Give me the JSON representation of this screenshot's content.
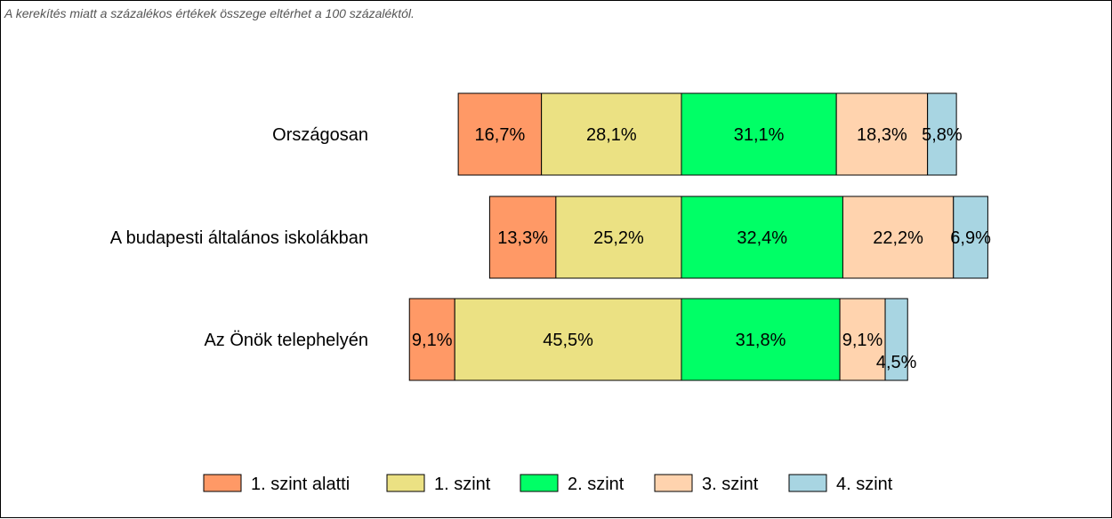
{
  "note": "A kerekítés miatt a  százalékos értékek összege eltérhet a 100 százaléktól.",
  "colors": {
    "1. szint alatti": "#FF9966",
    "1. szint": "#EBE183",
    "2. szint": "#00FF66",
    "3. szint": "#FFD3AE",
    "4. szint": "#A8D5E2"
  },
  "chart_data": {
    "type": "bar",
    "orientation": "horizontal",
    "stacked": true,
    "aligned_at": "2. szint",
    "categories": [
      "Országosan",
      "A budapesti általános iskolákban",
      "Az Önök telephelyén"
    ],
    "series": [
      {
        "name": "1. szint alatti",
        "values": [
          16.7,
          13.3,
          9.1
        ],
        "labels": [
          "16,7%",
          "13,3%",
          "9,1%"
        ]
      },
      {
        "name": "1. szint",
        "values": [
          28.1,
          25.2,
          45.5
        ],
        "labels": [
          "28,1%",
          "25,2%",
          "45,5%"
        ]
      },
      {
        "name": "2. szint",
        "values": [
          31.1,
          32.4,
          31.8
        ],
        "labels": [
          "31,1%",
          "32,4%",
          "31,8%"
        ]
      },
      {
        "name": "3. szint",
        "values": [
          18.3,
          22.2,
          9.1
        ],
        "labels": [
          "18,3%",
          "22,2%",
          "9,1%"
        ]
      },
      {
        "name": "4. szint",
        "values": [
          5.8,
          6.9,
          4.5
        ],
        "labels": [
          "5,8%",
          "6,9%",
          "4,5%"
        ]
      }
    ],
    "legend_position": "bottom",
    "grid": false
  }
}
